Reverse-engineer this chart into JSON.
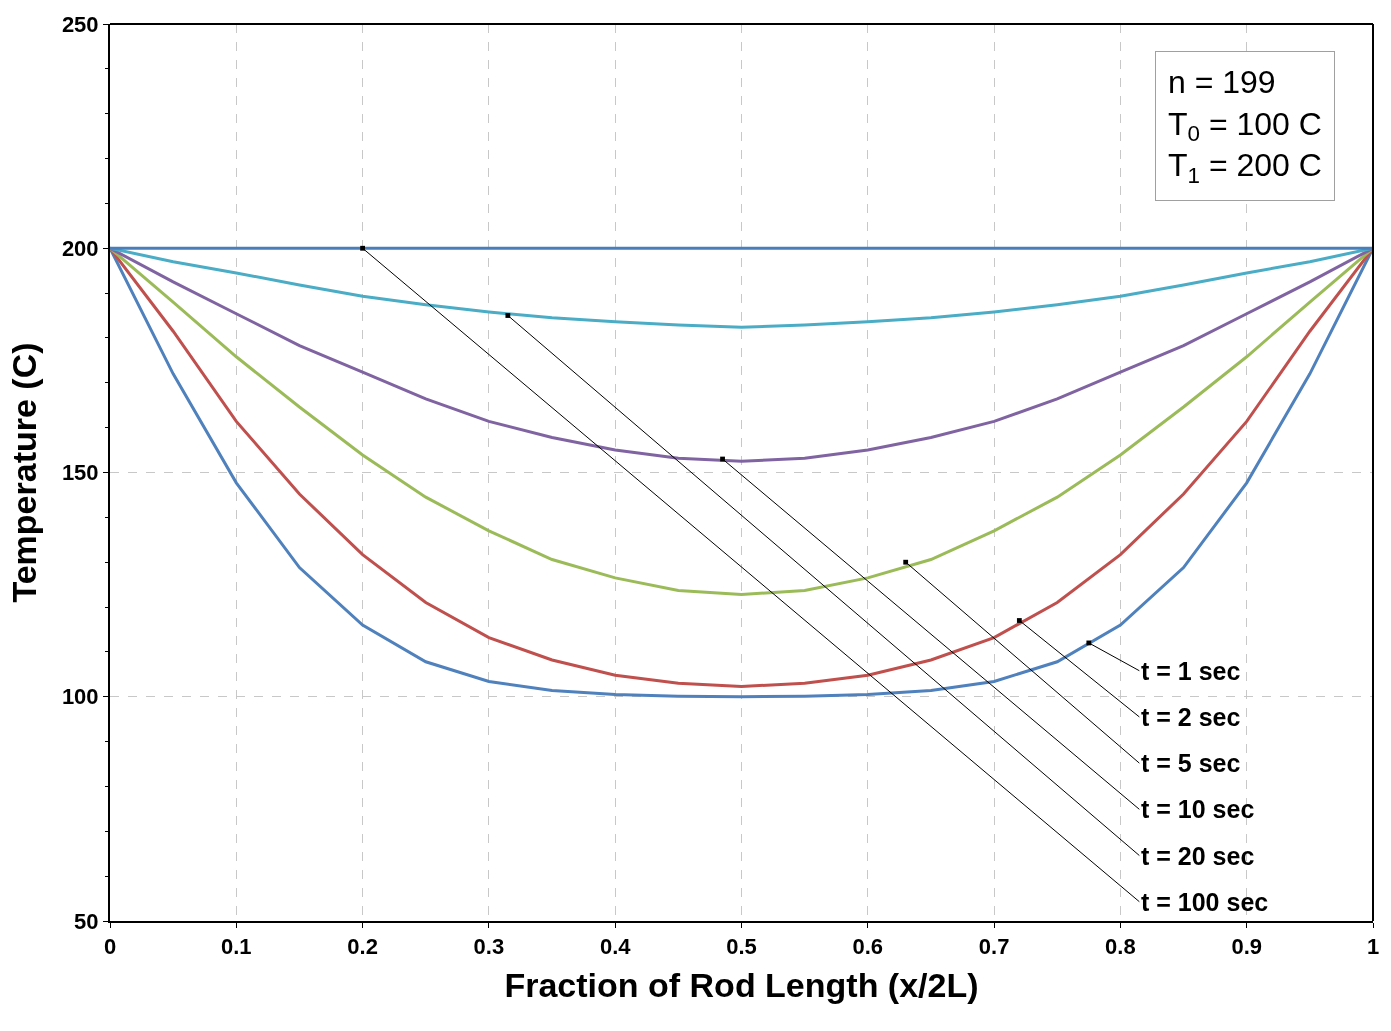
{
  "chart_data": {
    "type": "line",
    "xlabel": "Fraction of Rod Length (x/2L)",
    "ylabel": "Temperature (C)",
    "x": [
      0,
      0.05,
      0.1,
      0.15,
      0.2,
      0.25,
      0.3,
      0.35,
      0.4,
      0.45,
      0.5,
      0.55,
      0.6,
      0.65,
      0.7,
      0.75,
      0.8,
      0.85,
      0.9,
      0.95,
      1
    ],
    "series": [
      {
        "color": "#4f81bd",
        "values": [
          200,
          172,
          147.7,
          128.8,
          116,
          107.8,
          103.4,
          101.4,
          100.5,
          100.1,
          100,
          100.1,
          100.5,
          101.4,
          103.4,
          107.8,
          116,
          128.8,
          147.7,
          172,
          200
        ]
      },
      {
        "color": "#c0504d",
        "values": [
          200,
          181.5,
          161.4,
          145.2,
          131.7,
          121,
          113.2,
          108.2,
          104.8,
          103,
          102.3,
          103,
          104.8,
          108.2,
          113.2,
          121,
          131.7,
          145.2,
          161.4,
          181.5,
          200
        ]
      },
      {
        "color": "#9bbb59",
        "values": [
          200,
          188,
          175.8,
          164.6,
          153.9,
          144.5,
          137,
          130.6,
          126.5,
          123.7,
          122.8,
          123.7,
          126.5,
          130.6,
          137,
          144.5,
          153.9,
          164.6,
          175.8,
          188,
          200
        ]
      },
      {
        "color": "#8064a2",
        "values": [
          200,
          192.5,
          185.4,
          178.3,
          172.4,
          166.4,
          161.4,
          157.8,
          155,
          153.2,
          152.5,
          153.2,
          155,
          157.8,
          161.4,
          166.4,
          172.4,
          178.3,
          185.4,
          192.5,
          200
        ]
      },
      {
        "color": "#4bacc6",
        "values": [
          200,
          197,
          194.5,
          191.8,
          189.3,
          187.4,
          185.8,
          184.5,
          183.6,
          182.9,
          182.4,
          182.9,
          183.6,
          184.5,
          185.8,
          187.4,
          189.3,
          191.8,
          194.5,
          197,
          200
        ]
      },
      {
        "color": "#4a7ebb",
        "values": [
          200,
          200,
          200,
          200,
          200,
          200,
          200,
          200,
          200,
          200,
          200,
          200,
          200,
          200,
          200,
          200,
          200,
          200,
          200,
          200,
          200
        ]
      }
    ],
    "annotations": [
      {
        "text": "t = 1 sec",
        "x": 0.775,
        "y": 112
      },
      {
        "text": "t = 2 sec",
        "x": 0.72,
        "y": 117
      },
      {
        "text": "t = 5 sec",
        "x": 0.63,
        "y": 130
      },
      {
        "text": "t = 10 sec",
        "x": 0.485,
        "y": 153
      },
      {
        "text": "t = 20 sec",
        "x": 0.315,
        "y": 185
      },
      {
        "text": "t = 100 sec",
        "x": 0.2,
        "y": 200
      },
      "n = 199\nT$_{0}$ = 100 C\nT$_{1}$ = 200 C"
    ],
    "xlim": [
      0,
      1
    ],
    "ylim": [
      50,
      250
    ],
    "xticks": [
      0,
      0.1,
      0.2,
      0.3,
      0.4,
      0.5,
      0.6,
      0.7,
      0.8,
      0.9,
      1
    ],
    "yticks": [
      50,
      100,
      150,
      200,
      250
    ],
    "grid": true,
    "marker": "none",
    "line_style": "solid"
  }
}
